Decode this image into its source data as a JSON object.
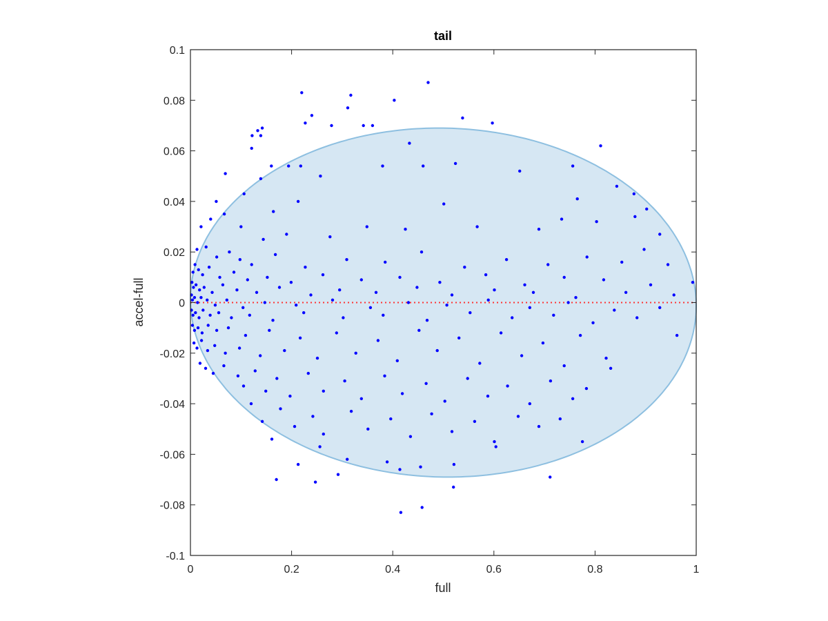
{
  "chart_data": {
    "type": "scatter",
    "title": "tail",
    "xlabel": "full",
    "ylabel": "accel-full",
    "xlim": [
      0,
      1
    ],
    "ylim": [
      -0.1,
      0.1
    ],
    "xticks": [
      "0",
      "0.2",
      "0.4",
      "0.6",
      "0.8",
      "1"
    ],
    "yticks": [
      "-0.1",
      "-0.08",
      "-0.06",
      "-0.04",
      "-0.02",
      "0",
      "0.02",
      "0.04",
      "0.06",
      "0.08",
      "0.1"
    ],
    "grid": false,
    "colors": {
      "points": "#0000ff",
      "ellipse_fill": "#d6e7f3",
      "ellipse_stroke": "#8dbfe0",
      "zero_line": "#ff3333",
      "axes": "#262626"
    },
    "ellipse": {
      "cx": 0.5,
      "cy": 0.0,
      "rx": 0.5,
      "ry": 0.069,
      "angle_deg": -4,
      "x_range": [
        0,
        1
      ]
    },
    "reference_line": {
      "y": 0,
      "style": "dotted"
    },
    "series": [
      {
        "points": [
          [
            0.22,
            0.083
          ],
          [
            0.317,
            0.082
          ],
          [
            0.47,
            0.087
          ],
          [
            0.403,
            0.08
          ],
          [
            0.311,
            0.077
          ],
          [
            0.538,
            0.073
          ],
          [
            0.597,
            0.071
          ],
          [
            0.24,
            0.074
          ],
          [
            0.227,
            0.071
          ],
          [
            0.279,
            0.07
          ],
          [
            0.342,
            0.07
          ],
          [
            0.36,
            0.07
          ],
          [
            0.133,
            0.068
          ],
          [
            0.142,
            0.069
          ],
          [
            0.122,
            0.066
          ],
          [
            0.139,
            0.066
          ],
          [
            0.811,
            0.062
          ],
          [
            0.121,
            0.061
          ],
          [
            0.433,
            0.063
          ],
          [
            0.756,
            0.054
          ],
          [
            0.16,
            0.054
          ],
          [
            0.194,
            0.054
          ],
          [
            0.218,
            0.054
          ],
          [
            0.257,
            0.05
          ],
          [
            0.38,
            0.054
          ],
          [
            0.46,
            0.054
          ],
          [
            0.524,
            0.055
          ],
          [
            0.069,
            0.051
          ],
          [
            0.139,
            0.049
          ],
          [
            0.651,
            0.052
          ],
          [
            0.843,
            0.046
          ],
          [
            0.877,
            0.043
          ],
          [
            0.765,
            0.041
          ],
          [
            0.051,
            0.04
          ],
          [
            0.902,
            0.037
          ],
          [
            0.106,
            0.043
          ],
          [
            0.164,
            0.036
          ],
          [
            0.213,
            0.04
          ],
          [
            0.349,
            0.03
          ],
          [
            0.501,
            0.039
          ],
          [
            0.734,
            0.033
          ],
          [
            0.879,
            0.034
          ],
          [
            0.928,
            0.027
          ],
          [
            0.021,
            0.03
          ],
          [
            0.04,
            0.033
          ],
          [
            0.067,
            0.035
          ],
          [
            0.1,
            0.03
          ],
          [
            0.144,
            0.025
          ],
          [
            0.19,
            0.027
          ],
          [
            0.276,
            0.026
          ],
          [
            0.425,
            0.029
          ],
          [
            0.567,
            0.03
          ],
          [
            0.689,
            0.029
          ],
          [
            0.803,
            0.032
          ],
          [
            0.897,
            0.021
          ],
          [
            0.013,
            0.021
          ],
          [
            0.031,
            0.022
          ],
          [
            0.052,
            0.018
          ],
          [
            0.077,
            0.02
          ],
          [
            0.098,
            0.017
          ],
          [
            0.121,
            0.015
          ],
          [
            0.168,
            0.019
          ],
          [
            0.227,
            0.014
          ],
          [
            0.309,
            0.017
          ],
          [
            0.385,
            0.016
          ],
          [
            0.457,
            0.02
          ],
          [
            0.542,
            0.014
          ],
          [
            0.625,
            0.017
          ],
          [
            0.707,
            0.015
          ],
          [
            0.784,
            0.018
          ],
          [
            0.853,
            0.016
          ],
          [
            0.944,
            0.015
          ],
          [
            0.005,
            0.012
          ],
          [
            0.009,
            0.015
          ],
          [
            0.016,
            0.013
          ],
          [
            0.024,
            0.011
          ],
          [
            0.037,
            0.014
          ],
          [
            0.058,
            0.01
          ],
          [
            0.086,
            0.012
          ],
          [
            0.113,
            0.009
          ],
          [
            0.152,
            0.01
          ],
          [
            0.199,
            0.008
          ],
          [
            0.262,
            0.011
          ],
          [
            0.338,
            0.009
          ],
          [
            0.414,
            0.01
          ],
          [
            0.493,
            0.008
          ],
          [
            0.584,
            0.011
          ],
          [
            0.661,
            0.007
          ],
          [
            0.739,
            0.01
          ],
          [
            0.817,
            0.009
          ],
          [
            0.91,
            0.007
          ],
          [
            0.993,
            0.008
          ],
          [
            0.003,
            0.008
          ],
          [
            0.006,
            0.006
          ],
          [
            0.011,
            0.007
          ],
          [
            0.018,
            0.005
          ],
          [
            0.027,
            0.006
          ],
          [
            0.043,
            0.004
          ],
          [
            0.064,
            0.007
          ],
          [
            0.092,
            0.005
          ],
          [
            0.131,
            0.004
          ],
          [
            0.176,
            0.006
          ],
          [
            0.238,
            0.003
          ],
          [
            0.295,
            0.005
          ],
          [
            0.367,
            0.004
          ],
          [
            0.448,
            0.006
          ],
          [
            0.517,
            0.003
          ],
          [
            0.601,
            0.005
          ],
          [
            0.678,
            0.004
          ],
          [
            0.762,
            0.002
          ],
          [
            0.861,
            0.004
          ],
          [
            0.956,
            0.003
          ],
          [
            0.002,
            0.003
          ],
          [
            0.004,
            0.001
          ],
          [
            0.008,
            0.002
          ],
          [
            0.014,
            0.0
          ],
          [
            0.021,
            0.002
          ],
          [
            0.033,
            0.001
          ],
          [
            0.049,
            -0.001
          ],
          [
            0.072,
            0.001
          ],
          [
            0.104,
            -0.002
          ],
          [
            0.147,
            0.0
          ],
          [
            0.209,
            -0.001
          ],
          [
            0.281,
            0.001
          ],
          [
            0.356,
            -0.002
          ],
          [
            0.431,
            0.0
          ],
          [
            0.507,
            -0.001
          ],
          [
            0.589,
            0.001
          ],
          [
            0.671,
            -0.002
          ],
          [
            0.747,
            0.0
          ],
          [
            0.838,
            -0.003
          ],
          [
            0.928,
            -0.002
          ],
          [
            0.002,
            -0.003
          ],
          [
            0.005,
            -0.005
          ],
          [
            0.01,
            -0.004
          ],
          [
            0.017,
            -0.006
          ],
          [
            0.025,
            -0.003
          ],
          [
            0.039,
            -0.005
          ],
          [
            0.056,
            -0.004
          ],
          [
            0.081,
            -0.006
          ],
          [
            0.117,
            -0.005
          ],
          [
            0.163,
            -0.007
          ],
          [
            0.224,
            -0.004
          ],
          [
            0.302,
            -0.006
          ],
          [
            0.381,
            -0.005
          ],
          [
            0.468,
            -0.007
          ],
          [
            0.553,
            -0.004
          ],
          [
            0.636,
            -0.006
          ],
          [
            0.718,
            -0.005
          ],
          [
            0.796,
            -0.008
          ],
          [
            0.883,
            -0.006
          ],
          [
            0.004,
            -0.009
          ],
          [
            0.008,
            -0.011
          ],
          [
            0.015,
            -0.01
          ],
          [
            0.023,
            -0.012
          ],
          [
            0.035,
            -0.009
          ],
          [
            0.052,
            -0.011
          ],
          [
            0.075,
            -0.01
          ],
          [
            0.109,
            -0.013
          ],
          [
            0.156,
            -0.011
          ],
          [
            0.217,
            -0.014
          ],
          [
            0.289,
            -0.012
          ],
          [
            0.371,
            -0.015
          ],
          [
            0.452,
            -0.011
          ],
          [
            0.531,
            -0.014
          ],
          [
            0.614,
            -0.012
          ],
          [
            0.697,
            -0.016
          ],
          [
            0.771,
            -0.013
          ],
          [
            0.962,
            -0.013
          ],
          [
            0.007,
            -0.016
          ],
          [
            0.013,
            -0.018
          ],
          [
            0.022,
            -0.015
          ],
          [
            0.034,
            -0.019
          ],
          [
            0.048,
            -0.017
          ],
          [
            0.069,
            -0.02
          ],
          [
            0.097,
            -0.018
          ],
          [
            0.138,
            -0.021
          ],
          [
            0.186,
            -0.019
          ],
          [
            0.251,
            -0.022
          ],
          [
            0.327,
            -0.02
          ],
          [
            0.409,
            -0.023
          ],
          [
            0.488,
            -0.019
          ],
          [
            0.572,
            -0.024
          ],
          [
            0.655,
            -0.021
          ],
          [
            0.739,
            -0.025
          ],
          [
            0.822,
            -0.022
          ],
          [
            0.831,
            -0.026
          ],
          [
            0.019,
            -0.024
          ],
          [
            0.03,
            -0.026
          ],
          [
            0.045,
            -0.028
          ],
          [
            0.066,
            -0.025
          ],
          [
            0.094,
            -0.029
          ],
          [
            0.128,
            -0.027
          ],
          [
            0.171,
            -0.03
          ],
          [
            0.233,
            -0.028
          ],
          [
            0.305,
            -0.031
          ],
          [
            0.384,
            -0.029
          ],
          [
            0.466,
            -0.032
          ],
          [
            0.548,
            -0.03
          ],
          [
            0.627,
            -0.033
          ],
          [
            0.712,
            -0.031
          ],
          [
            0.783,
            -0.034
          ],
          [
            0.105,
            -0.033
          ],
          [
            0.149,
            -0.035
          ],
          [
            0.197,
            -0.037
          ],
          [
            0.263,
            -0.035
          ],
          [
            0.338,
            -0.038
          ],
          [
            0.419,
            -0.036
          ],
          [
            0.503,
            -0.039
          ],
          [
            0.588,
            -0.037
          ],
          [
            0.671,
            -0.04
          ],
          [
            0.756,
            -0.038
          ],
          [
            0.12,
            -0.04
          ],
          [
            0.178,
            -0.042
          ],
          [
            0.242,
            -0.045
          ],
          [
            0.318,
            -0.043
          ],
          [
            0.396,
            -0.046
          ],
          [
            0.477,
            -0.044
          ],
          [
            0.562,
            -0.047
          ],
          [
            0.648,
            -0.045
          ],
          [
            0.731,
            -0.046
          ],
          [
            0.142,
            -0.047
          ],
          [
            0.161,
            -0.054
          ],
          [
            0.206,
            -0.049
          ],
          [
            0.263,
            -0.052
          ],
          [
            0.351,
            -0.05
          ],
          [
            0.435,
            -0.053
          ],
          [
            0.517,
            -0.051
          ],
          [
            0.601,
            -0.055
          ],
          [
            0.689,
            -0.049
          ],
          [
            0.775,
            -0.055
          ],
          [
            0.213,
            -0.064
          ],
          [
            0.256,
            -0.057
          ],
          [
            0.31,
            -0.062
          ],
          [
            0.389,
            -0.063
          ],
          [
            0.414,
            -0.066
          ],
          [
            0.521,
            -0.064
          ],
          [
            0.455,
            -0.065
          ],
          [
            0.604,
            -0.057
          ],
          [
            0.17,
            -0.07
          ],
          [
            0.247,
            -0.071
          ],
          [
            0.292,
            -0.068
          ],
          [
            0.52,
            -0.073
          ],
          [
            0.711,
            -0.069
          ],
          [
            0.458,
            -0.081
          ],
          [
            0.416,
            -0.083
          ]
        ]
      }
    ]
  }
}
